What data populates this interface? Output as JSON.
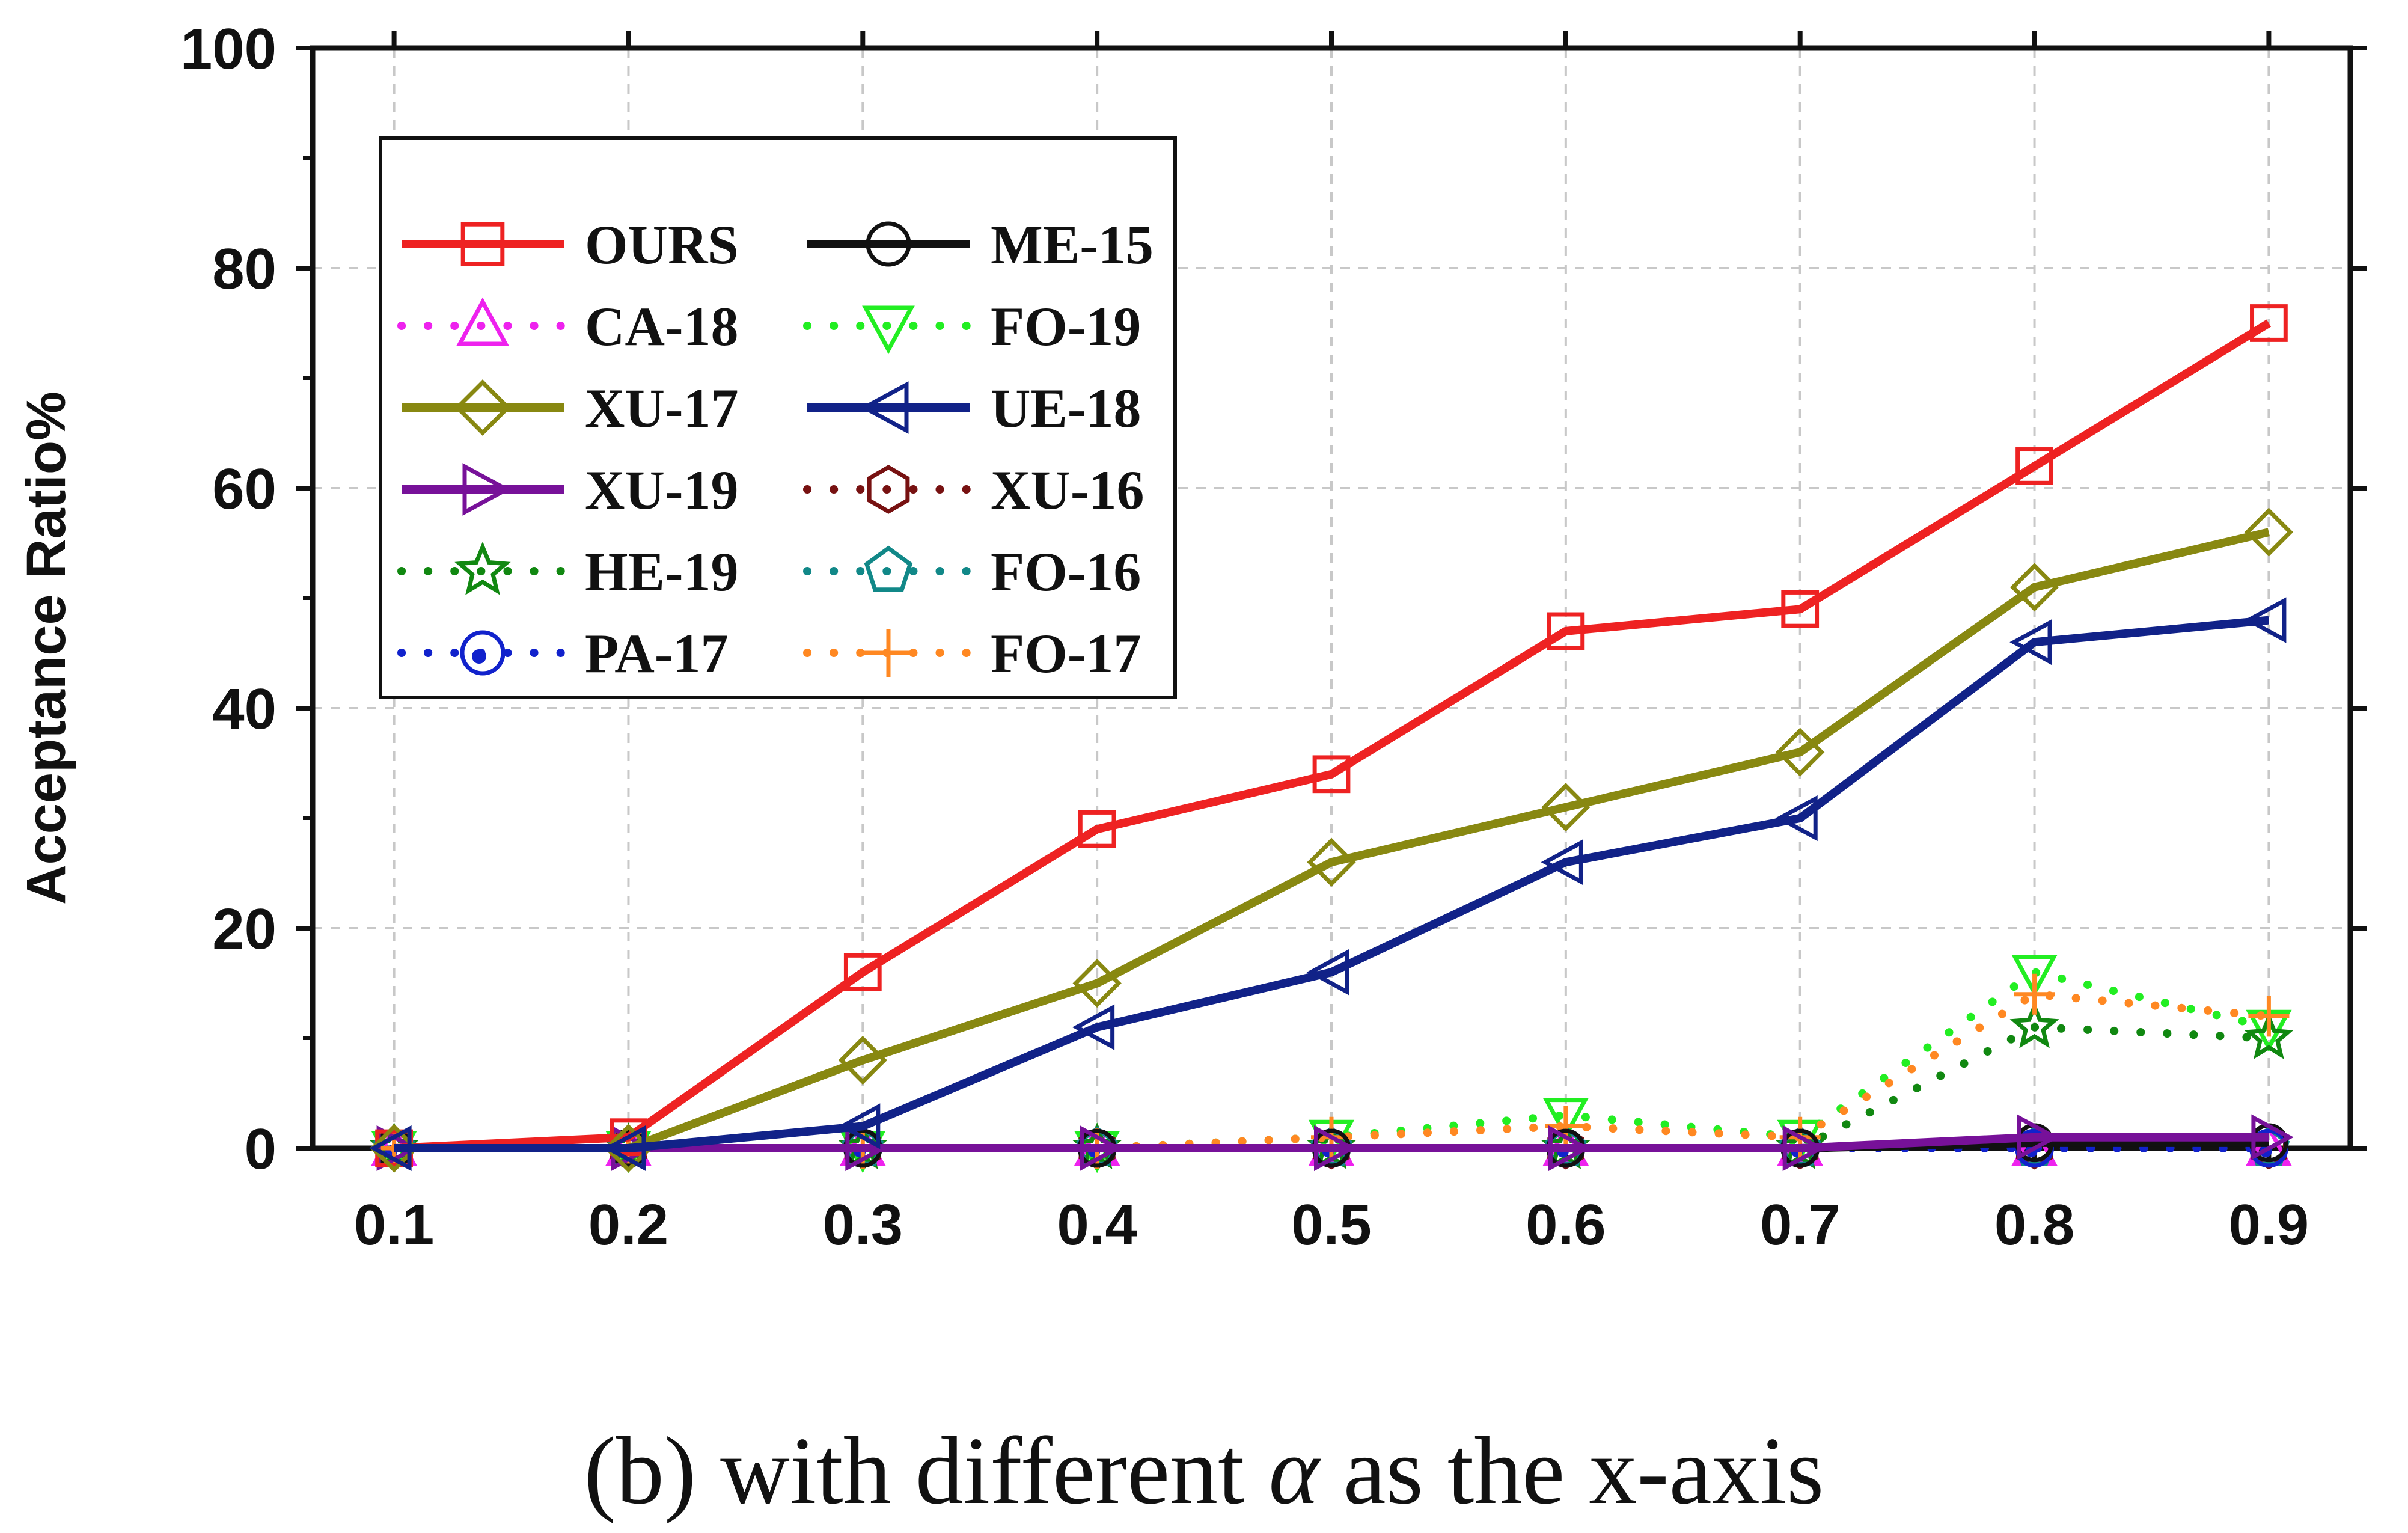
{
  "chart_data": {
    "type": "line",
    "caption": {
      "before": "(b) with different ",
      "symbol": "α",
      "after": " as the x-axis"
    },
    "ylabel": "Acceptance Ratio%",
    "xlabel": "",
    "x": [
      0.1,
      0.2,
      0.3,
      0.4,
      0.5,
      0.6,
      0.7,
      0.8,
      0.9
    ],
    "x_tick_labels": [
      "0.1",
      "0.2",
      "0.3",
      "0.4",
      "0.5",
      "0.6",
      "0.7",
      "0.8",
      "0.9"
    ],
    "xlim": [
      0.1,
      0.9
    ],
    "ylim": [
      0,
      100
    ],
    "y_ticks": [
      0,
      20,
      40,
      60,
      80,
      100
    ],
    "grid": true,
    "legend_position": "top-left",
    "series": [
      {
        "name": "OURS",
        "color": "#ee2222",
        "marker": "square",
        "line": "solid",
        "values": [
          0,
          1,
          16,
          29,
          34,
          47,
          49,
          62,
          75
        ]
      },
      {
        "name": "ME-15",
        "color": "#111111",
        "marker": "circle",
        "line": "solid",
        "values": [
          0,
          0,
          0,
          0,
          0,
          0,
          0,
          0.5,
          0.5
        ]
      },
      {
        "name": "CA-18",
        "color": "#ee22ee",
        "marker": "triangle-up",
        "line": "dotted",
        "values": [
          0,
          0,
          0,
          0,
          0,
          0,
          0,
          0,
          0
        ]
      },
      {
        "name": "FO-19",
        "color": "#22ee22",
        "marker": "triangle-down",
        "line": "dotted",
        "values": [
          0,
          0,
          0,
          0,
          1,
          3,
          1,
          16,
          11
        ]
      },
      {
        "name": "XU-17",
        "color": "#888811",
        "marker": "diamond",
        "line": "solid",
        "values": [
          0,
          0,
          8,
          15,
          26,
          31,
          36,
          51,
          56
        ]
      },
      {
        "name": "UE-18",
        "color": "#112288",
        "marker": "triangle-left",
        "line": "solid",
        "values": [
          0,
          0,
          2,
          11,
          16,
          26,
          30,
          46,
          48
        ]
      },
      {
        "name": "XU-19",
        "color": "#771199",
        "marker": "triangle-right",
        "line": "solid",
        "values": [
          0,
          0,
          0,
          0,
          0,
          0,
          0,
          1,
          1
        ]
      },
      {
        "name": "XU-16",
        "color": "#771111",
        "marker": "hexagon",
        "line": "dotted",
        "values": [
          0,
          0,
          0,
          0,
          0,
          0,
          0,
          0,
          0
        ]
      },
      {
        "name": "HE-19",
        "color": "#118811",
        "marker": "star",
        "line": "dotted",
        "values": [
          0,
          0,
          0,
          0,
          0,
          0,
          0,
          11,
          10
        ]
      },
      {
        "name": "FO-16",
        "color": "#118888",
        "marker": "pentagon",
        "line": "dotted",
        "values": [
          0,
          0,
          0,
          0,
          0,
          0,
          0,
          0,
          0
        ]
      },
      {
        "name": "PA-17",
        "color": "#1122cc",
        "marker": "circle-dot",
        "line": "dotted",
        "values": [
          0,
          0,
          0,
          0,
          0,
          0,
          0,
          0,
          0
        ]
      },
      {
        "name": "FO-17",
        "color": "#ff8822",
        "marker": "plus",
        "line": "dotted",
        "values": [
          0,
          0,
          0,
          0,
          1,
          2,
          1,
          14,
          12
        ]
      }
    ]
  }
}
